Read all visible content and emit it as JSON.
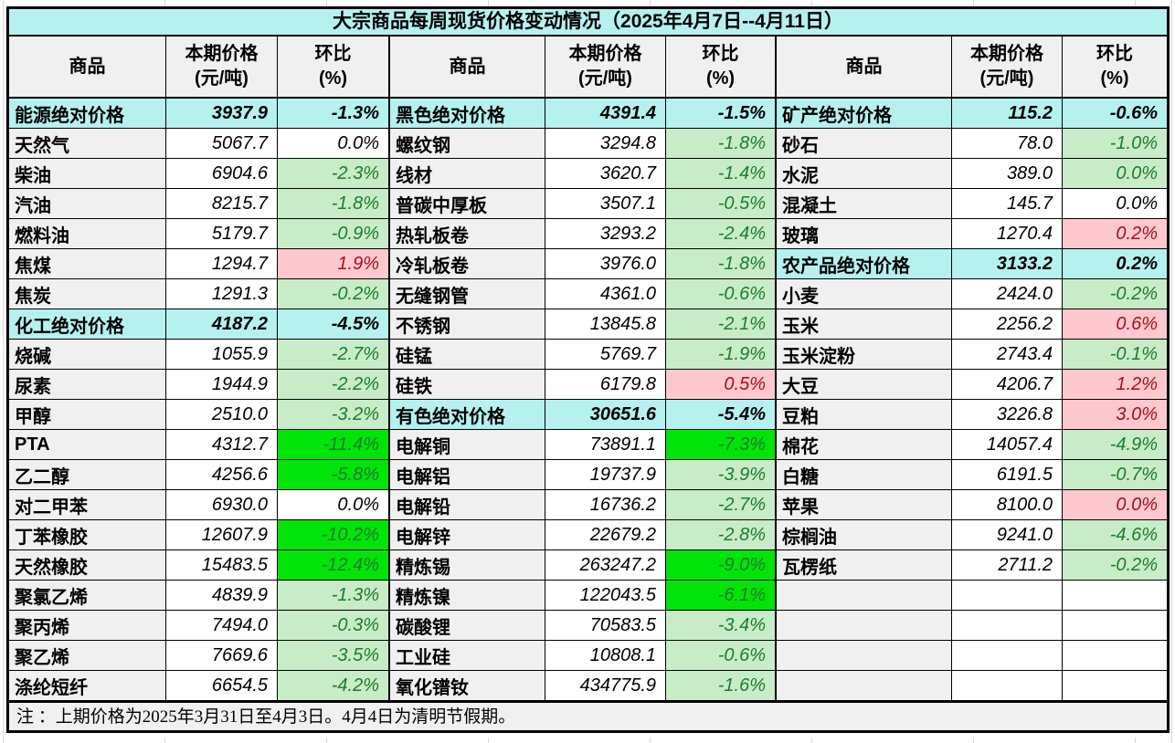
{
  "title": "大宗商品每周现货价格变动情况（2025年4月7日--4月11日）",
  "note": "注 ：上期价格为2025年3月31日至4月3日。4月4日为清明节假期。",
  "header": {
    "commodity": "商品",
    "price_line1": "本期价格",
    "price_line2": "(元/吨)",
    "pct_line1": "环比",
    "pct_line2": "(%)"
  },
  "colors": {
    "cyan": "#b5f1ef",
    "gray": "#f0f0f0",
    "lightgreen": "#c8ecc8",
    "brightgreen": "#00e40a",
    "pink": "#ffc8ce",
    "greentext": "#1e7b2d",
    "redtext": "#a3111f"
  },
  "chart_data": {
    "type": "table",
    "title": "大宗商品每周现货价格变动情况（2025年4月7日--4月11日）",
    "columns": [
      "商品",
      "本期价格(元/吨)",
      "环比(%)"
    ],
    "note": "注 ：上期价格为2025年3月31日至4月3日。4月4日为清明节假期。",
    "groups": [
      [
        {
          "name": "能源绝对价格",
          "price": "3937.9",
          "pct": "-1.3%",
          "type": "section"
        },
        {
          "name": "天然气",
          "price": "5067.7",
          "pct": "0.0%",
          "type": "item",
          "style": "none"
        },
        {
          "name": "柴油",
          "price": "6904.6",
          "pct": "-2.3%",
          "type": "item",
          "style": "lg"
        },
        {
          "name": "汽油",
          "price": "8215.7",
          "pct": "-1.8%",
          "type": "item",
          "style": "lg"
        },
        {
          "name": "燃料油",
          "price": "5179.7",
          "pct": "-0.9%",
          "type": "item",
          "style": "lg"
        },
        {
          "name": "焦煤",
          "price": "1294.7",
          "pct": "1.9%",
          "type": "item",
          "style": "pink"
        },
        {
          "name": "焦炭",
          "price": "1291.3",
          "pct": "-0.2%",
          "type": "item",
          "style": "lg"
        },
        {
          "name": "化工绝对价格",
          "price": "4187.2",
          "pct": "-4.5%",
          "type": "section"
        },
        {
          "name": "烧碱",
          "price": "1055.9",
          "pct": "-2.7%",
          "type": "item",
          "style": "lg"
        },
        {
          "name": "尿素",
          "price": "1944.9",
          "pct": "-2.2%",
          "type": "item",
          "style": "lg"
        },
        {
          "name": "甲醇",
          "price": "2510.0",
          "pct": "-3.2%",
          "type": "item",
          "style": "lg"
        },
        {
          "name": "PTA",
          "price": "4312.7",
          "pct": "-11.4%",
          "type": "item",
          "style": "bg"
        },
        {
          "name": "乙二醇",
          "price": "4256.6",
          "pct": "-5.8%",
          "type": "item",
          "style": "bg"
        },
        {
          "name": "对二甲苯",
          "price": "6930.0",
          "pct": "0.0%",
          "type": "item",
          "style": "none"
        },
        {
          "name": "丁苯橡胶",
          "price": "12607.9",
          "pct": "-10.2%",
          "type": "item",
          "style": "bg"
        },
        {
          "name": "天然橡胶",
          "price": "15483.5",
          "pct": "-12.4%",
          "type": "item",
          "style": "bg"
        },
        {
          "name": "聚氯乙烯",
          "price": "4839.9",
          "pct": "-1.3%",
          "type": "item",
          "style": "lg"
        },
        {
          "name": "聚丙烯",
          "price": "7494.0",
          "pct": "-0.3%",
          "type": "item",
          "style": "lg"
        },
        {
          "name": "聚乙烯",
          "price": "7669.6",
          "pct": "-3.5%",
          "type": "item",
          "style": "lg"
        },
        {
          "name": "涤纶短纤",
          "price": "6654.5",
          "pct": "-4.2%",
          "type": "item",
          "style": "lg"
        }
      ],
      [
        {
          "name": "黑色绝对价格",
          "price": "4391.4",
          "pct": "-1.5%",
          "type": "section"
        },
        {
          "name": "螺纹钢",
          "price": "3294.8",
          "pct": "-1.8%",
          "type": "item",
          "style": "lg"
        },
        {
          "name": "线材",
          "price": "3620.7",
          "pct": "-1.4%",
          "type": "item",
          "style": "lg"
        },
        {
          "name": "普碳中厚板",
          "price": "3507.1",
          "pct": "-0.5%",
          "type": "item",
          "style": "lg"
        },
        {
          "name": "热轧板卷",
          "price": "3293.2",
          "pct": "-2.4%",
          "type": "item",
          "style": "lg"
        },
        {
          "name": "冷轧板卷",
          "price": "3976.0",
          "pct": "-1.8%",
          "type": "item",
          "style": "lg"
        },
        {
          "name": "无缝钢管",
          "price": "4361.0",
          "pct": "-0.6%",
          "type": "item",
          "style": "lg"
        },
        {
          "name": "不锈钢",
          "price": "13845.8",
          "pct": "-2.1%",
          "type": "item",
          "style": "lg"
        },
        {
          "name": "硅锰",
          "price": "5769.7",
          "pct": "-1.9%",
          "type": "item",
          "style": "lg"
        },
        {
          "name": "硅铁",
          "price": "6179.8",
          "pct": "0.5%",
          "type": "item",
          "style": "pink"
        },
        {
          "name": "有色绝对价格",
          "price": "30651.6",
          "pct": "-5.4%",
          "type": "section"
        },
        {
          "name": "电解铜",
          "price": "73891.1",
          "pct": "-7.3%",
          "type": "item",
          "style": "bg"
        },
        {
          "name": "电解铝",
          "price": "19737.9",
          "pct": "-3.9%",
          "type": "item",
          "style": "lg"
        },
        {
          "name": "电解铅",
          "price": "16736.2",
          "pct": "-2.7%",
          "type": "item",
          "style": "lg"
        },
        {
          "name": "电解锌",
          "price": "22679.2",
          "pct": "-2.8%",
          "type": "item",
          "style": "lg"
        },
        {
          "name": "精炼锡",
          "price": "263247.2",
          "pct": "-9.0%",
          "type": "item",
          "style": "bg"
        },
        {
          "name": "精炼镍",
          "price": "122043.5",
          "pct": "-6.1%",
          "type": "item",
          "style": "bg"
        },
        {
          "name": "碳酸锂",
          "price": "70583.5",
          "pct": "-3.4%",
          "type": "item",
          "style": "lg"
        },
        {
          "name": "工业硅",
          "price": "10808.1",
          "pct": "-0.6%",
          "type": "item",
          "style": "lg"
        },
        {
          "name": "氧化镨钕",
          "price": "434775.9",
          "pct": "-1.6%",
          "type": "item",
          "style": "lg"
        }
      ],
      [
        {
          "name": "矿产绝对价格",
          "price": "115.2",
          "pct": "-0.6%",
          "type": "section"
        },
        {
          "name": "砂石",
          "price": "78.0",
          "pct": "-1.0%",
          "type": "item",
          "style": "lg"
        },
        {
          "name": "水泥",
          "price": "389.0",
          "pct": "0.0%",
          "type": "item",
          "style": "lg"
        },
        {
          "name": "混凝土",
          "price": "145.7",
          "pct": "0.0%",
          "type": "item",
          "style": "none"
        },
        {
          "name": "玻璃",
          "price": "1270.4",
          "pct": "0.2%",
          "type": "item",
          "style": "pink"
        },
        {
          "name": "农产品绝对价格",
          "price": "3133.2",
          "pct": "0.2%",
          "type": "section"
        },
        {
          "name": "小麦",
          "price": "2424.0",
          "pct": "-0.2%",
          "type": "item",
          "style": "lg"
        },
        {
          "name": "玉米",
          "price": "2256.2",
          "pct": "0.6%",
          "type": "item",
          "style": "pink"
        },
        {
          "name": "玉米淀粉",
          "price": "2743.4",
          "pct": "-0.1%",
          "type": "item",
          "style": "lg"
        },
        {
          "name": "大豆",
          "price": "4206.7",
          "pct": "1.2%",
          "type": "item",
          "style": "pink"
        },
        {
          "name": "豆粕",
          "price": "3226.8",
          "pct": "3.0%",
          "type": "item",
          "style": "pink"
        },
        {
          "name": "棉花",
          "price": "14057.4",
          "pct": "-4.9%",
          "type": "item",
          "style": "lg"
        },
        {
          "name": "白糖",
          "price": "6191.5",
          "pct": "-0.7%",
          "type": "item",
          "style": "lg"
        },
        {
          "name": "苹果",
          "price": "8100.0",
          "pct": "0.0%",
          "type": "item",
          "style": "pink"
        },
        {
          "name": "棕榈油",
          "price": "9241.0",
          "pct": "-4.6%",
          "type": "item",
          "style": "lg"
        },
        {
          "name": "瓦楞纸",
          "price": "2711.2",
          "pct": "-0.2%",
          "type": "item",
          "style": "lg"
        },
        {
          "type": "empty"
        },
        {
          "type": "empty"
        },
        {
          "type": "empty"
        },
        {
          "type": "empty"
        }
      ]
    ]
  }
}
